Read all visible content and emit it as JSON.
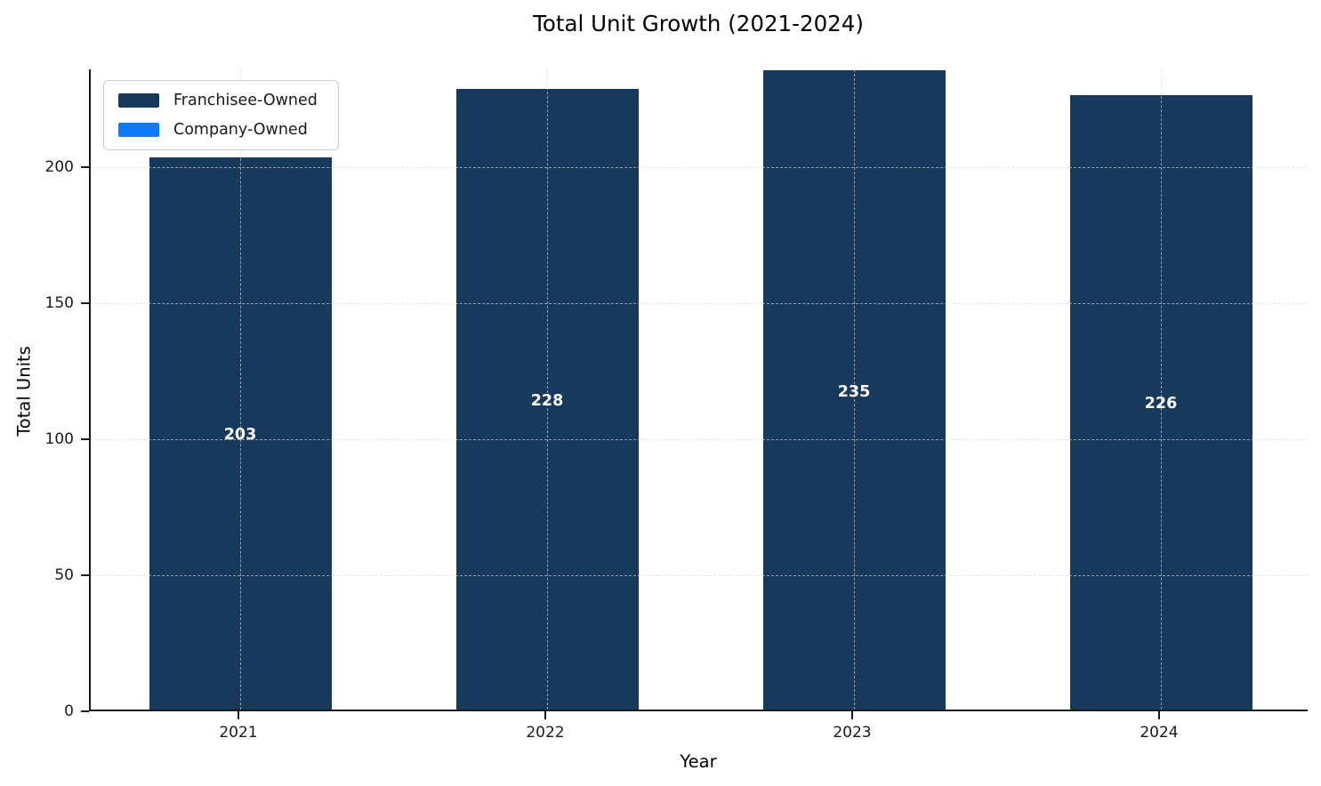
{
  "chart_data": {
    "type": "bar",
    "stacked": true,
    "title": "Total Unit Growth (2021-2024)",
    "xlabel": "Year",
    "ylabel": "Total Units",
    "categories": [
      "2021",
      "2022",
      "2023",
      "2024"
    ],
    "series": [
      {
        "name": "Franchisee-Owned",
        "color": "#17395c",
        "values": [
          203,
          228,
          235,
          226
        ]
      },
      {
        "name": "Company-Owned",
        "color": "#0d7bf7",
        "values": [
          0,
          0,
          0,
          0
        ]
      }
    ],
    "bar_labels": [
      "203",
      "228",
      "235",
      "226"
    ],
    "bar_label_color": "#ffffff",
    "yticks": [
      0,
      50,
      100,
      150,
      200
    ],
    "ylim": [
      0,
      236
    ],
    "grid": true,
    "grid_style": "dashed",
    "grid_color": "#d9d9d9",
    "legend_position": "upper-left"
  },
  "legend": {
    "items": [
      {
        "label": "Franchisee-Owned",
        "color": "#17395c"
      },
      {
        "label": "Company-Owned",
        "color": "#0d7bf7"
      }
    ]
  }
}
